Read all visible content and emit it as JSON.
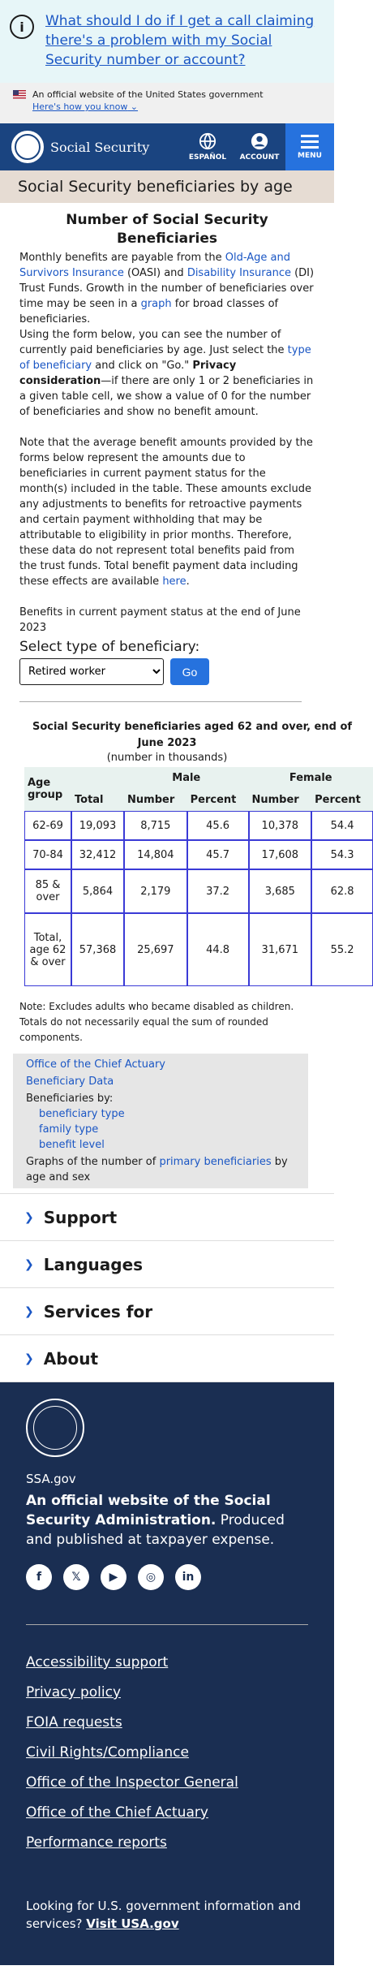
{
  "alert": {
    "text": "What should I do if I get a call claiming there's a problem with my Social Security number or account?"
  },
  "gov_banner": {
    "text": "An official website of the United States government",
    "how": "Here's how you know"
  },
  "header": {
    "brand": "Social Security",
    "lang": "ESPAÑOL",
    "account": "ACCOUNT",
    "menu": "MENU"
  },
  "page_title": "Social Security beneficiaries by age",
  "main": {
    "heading": "Number of Social Security Beneficiaries",
    "p1_a": "Monthly benefits are payable from the ",
    "link_oasi": "Old-Age and Survivors Insurance",
    "p1_b": " (OASI) and ",
    "link_di": "Disability Insurance",
    "p1_c": " (DI) Trust Funds. Growth in the number of beneficiaries over time may be seen in a ",
    "link_graph": "graph",
    "p1_d": " for broad classes of beneficiaries.",
    "p2_a": "Using the form below, you can see the number of currently paid beneficiaries by age. Just select the ",
    "link_type": "type of beneficiary",
    "p2_b": " and click on \"Go.\" ",
    "p2_bold": "Privacy consideration",
    "p2_c": "—if there are only 1 or 2 beneficiaries in a given table cell, we show a value of 0 for the number of beneficiaries and show no benefit amount.",
    "p3_a": "Note that the average benefit amounts provided by the forms below represent the amounts due to beneficiaries in current payment status for the month(s) included in the table. These amounts exclude any adjustments to benefits for retroactive payments and certain payment withholding that may be attributable to eligibility in prior months. Therefore, these data do not represent total benefits paid from the trust funds. Total benefit payment data including these effects are available ",
    "link_here": "here",
    "p3_b": ".",
    "status": "Benefits in current payment status at the end of June 2023",
    "select_label": "Select type of beneficiary:",
    "select_value": "Retired worker",
    "go": "Go"
  },
  "table": {
    "caption_1": "Social Security beneficiaries aged 62 and over, end of",
    "caption_2": "June 2023",
    "subcaption": "(number in thousands)",
    "group_header": "Age group",
    "male": "Male",
    "female": "Female",
    "col_total": "Total",
    "col_number": "Number",
    "col_percent": "Percent",
    "col_fnumber": "Number",
    "col_fpercent": "Percent",
    "rows": [
      {
        "age": "62-69",
        "total": "19,093",
        "mnum": "8,715",
        "mpct": "45.6",
        "fnum": "10,378",
        "fpct": "54.4"
      },
      {
        "age": "70-84",
        "total": "32,412",
        "mnum": "14,804",
        "mpct": "45.7",
        "fnum": "17,608",
        "fpct": "54.3"
      },
      {
        "age": "85 & over",
        "total": "5,864",
        "mnum": "2,179",
        "mpct": "37.2",
        "fnum": "3,685",
        "fpct": "62.8"
      },
      {
        "age": "Total, age 62 & over",
        "total": "57,368",
        "mnum": "25,697",
        "mpct": "44.8",
        "fnum": "31,671",
        "fpct": "55.2"
      }
    ],
    "note": "Note: Excludes adults who became disabled as children. Totals do not necessarily equal the sum of rounded components."
  },
  "sidebar": {
    "actuary": "Office of the Chief Actuary",
    "beneficiary_data": "Beneficiary Data",
    "by_label": "Beneficiaries by:",
    "by_items": [
      "beneficiary type",
      "family type",
      "benefit level"
    ],
    "graphs_a": "Graphs of the number of ",
    "graphs_link": "primary beneficiaries",
    "graphs_b": " by age and sex"
  },
  "accordion": [
    "Support",
    "Languages",
    "Services for",
    "About"
  ],
  "footer": {
    "site": "SSA.gov",
    "tag_bold": "An official website of the Social Security Administration.",
    "tag_rest": " Produced and published at taxpayer expense.",
    "socials": [
      "facebook-icon",
      "twitter-icon",
      "youtube-icon",
      "instagram-icon",
      "linkedin-icon"
    ],
    "links": [
      "Accessibility support",
      "Privacy policy",
      "FOIA requests",
      "Civil Rights/Compliance",
      "Office of the Inspector General",
      "Office of the Chief Actuary",
      "Performance reports"
    ],
    "usa_text": "Looking for U.S. government information and services? ",
    "usa_link": "Visit USA.gov"
  }
}
